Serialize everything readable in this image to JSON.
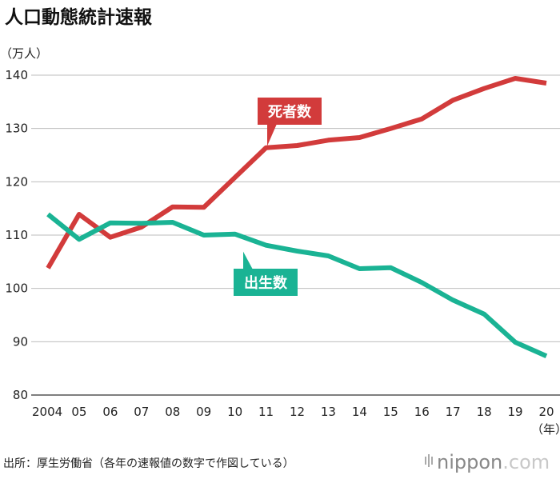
{
  "header": {
    "title": "人口動態統計速報",
    "unit": "（万人）"
  },
  "x_unit": "（年）",
  "source": "出所：厚生労働省（各年の速報値の数字で作図している）",
  "brand": {
    "main": "nippon",
    "suffix": ".com"
  },
  "chart_data": {
    "type": "line",
    "title": "人口動態統計速報",
    "ylabel": "（万人）",
    "xlabel": "（年）",
    "ylim": [
      80,
      140
    ],
    "yticks": [
      80,
      90,
      100,
      110,
      120,
      130,
      140
    ],
    "categories": [
      "2004",
      "05",
      "06",
      "07",
      "08",
      "09",
      "10",
      "11",
      "12",
      "13",
      "14",
      "15",
      "16",
      "17",
      "18",
      "19",
      "20"
    ],
    "grid": true,
    "legend": "inline-callouts",
    "series": [
      {
        "name": "死者数",
        "color": "#d23b3b",
        "values": [
          103.8,
          113.9,
          109.6,
          111.5,
          115.3,
          115.2,
          120.8,
          126.4,
          126.8,
          127.8,
          128.3,
          130.0,
          131.8,
          135.3,
          137.5,
          139.4,
          138.5
        ]
      },
      {
        "name": "出生数",
        "color": "#1ab394",
        "values": [
          113.9,
          109.2,
          112.3,
          112.2,
          112.4,
          110.0,
          110.2,
          108.1,
          107.0,
          106.1,
          103.7,
          103.9,
          101.1,
          97.8,
          95.2,
          89.9,
          87.3
        ]
      }
    ]
  }
}
